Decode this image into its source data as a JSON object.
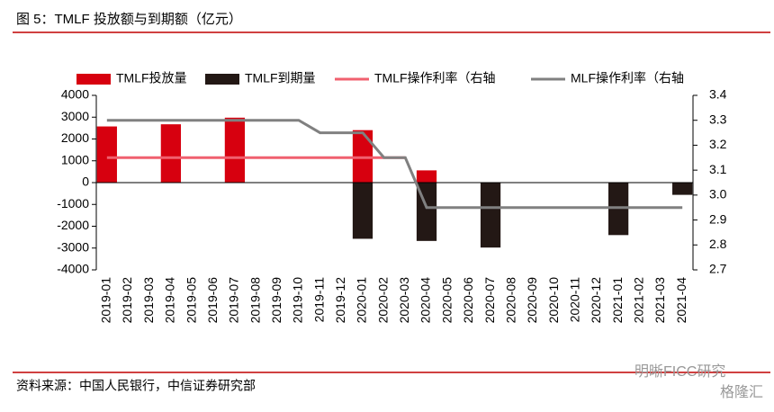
{
  "chart_data": {
    "type": "bar_line",
    "title": "图 5：TMLF 投放额与到期额（亿元）",
    "source": "资料来源：中国人民银行，中信证券研究部",
    "watermark": "明晰FICC研究",
    "watermark2": "格隆汇",
    "categories": [
      "2019-01",
      "2019-02",
      "2019-03",
      "2019-04",
      "2019-05",
      "2019-06",
      "2019-07",
      "2019-08",
      "2019-09",
      "2019-10",
      "2019-11",
      "2019-12",
      "2020-01",
      "2020-02",
      "2020-03",
      "2020-04",
      "2020-05",
      "2020-06",
      "2020-07",
      "2020-08",
      "2020-09",
      "2020-10",
      "2020-11",
      "2020-12",
      "2021-01",
      "2021-02",
      "2021-03",
      "2021-04"
    ],
    "series": [
      {
        "name": "TMLF投放量",
        "type": "bar",
        "color": "#d7000f",
        "values": [
          2575,
          null,
          null,
          2674,
          null,
          null,
          2977,
          null,
          null,
          null,
          null,
          null,
          2405,
          null,
          null,
          561,
          null,
          null,
          null,
          null,
          null,
          null,
          null,
          null,
          null,
          null,
          null,
          null
        ]
      },
      {
        "name": "TMLF到期量",
        "type": "bar",
        "color": "#231815",
        "values": [
          null,
          null,
          null,
          null,
          null,
          null,
          null,
          null,
          null,
          null,
          null,
          null,
          -2575,
          null,
          null,
          -2674,
          null,
          null,
          -2977,
          null,
          null,
          null,
          null,
          null,
          -2405,
          null,
          null,
          -561
        ]
      },
      {
        "name": "TMLF操作利率（右轴",
        "type": "line",
        "axis": "y2",
        "color": "#f0606f",
        "values": [
          3.15,
          3.15,
          3.15,
          3.15,
          3.15,
          3.15,
          3.15,
          3.15,
          3.15,
          3.15,
          3.15,
          3.15,
          3.15,
          3.15,
          3.15,
          null,
          null,
          null,
          null,
          null,
          null,
          null,
          null,
          null,
          null,
          null,
          null,
          null
        ]
      },
      {
        "name": "MLF操作利率（右轴",
        "type": "line",
        "axis": "y2",
        "color": "#808080",
        "values": [
          3.3,
          3.3,
          3.3,
          3.3,
          3.3,
          3.3,
          3.3,
          3.3,
          3.3,
          3.3,
          3.25,
          3.25,
          3.25,
          3.15,
          3.15,
          2.95,
          2.95,
          2.95,
          2.95,
          2.95,
          2.95,
          2.95,
          2.95,
          2.95,
          2.95,
          2.95,
          2.95,
          2.95
        ]
      }
    ],
    "ylim": [
      -4000,
      4000
    ],
    "yticks": [
      4000,
      3000,
      2000,
      1000,
      0,
      -1000,
      -2000,
      -3000,
      -4000
    ],
    "y2lim": [
      2.7,
      3.4
    ],
    "y2ticks": [
      3.4,
      3.3,
      3.2,
      3.1,
      {
        "value": 3,
        "label": "3.0"
      },
      2.9,
      2.8,
      2.7
    ],
    "legend": "top"
  }
}
